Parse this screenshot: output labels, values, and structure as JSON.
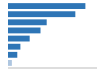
{
  "chart_data": {
    "type": "bar",
    "orientation": "horizontal",
    "categories": [
      null,
      null,
      null,
      null,
      null,
      null,
      null,
      null
    ],
    "values": [
      100,
      87,
      50,
      42,
      28,
      16,
      12,
      5
    ],
    "colors": [
      "#2e75b6",
      "#2e75b6",
      "#2e75b6",
      "#2e75b6",
      "#2e75b6",
      "#2e75b6",
      "#2e75b6",
      "#aec6e0"
    ],
    "xlim": [
      0,
      115
    ],
    "tick_labels": false,
    "grid": false
  }
}
